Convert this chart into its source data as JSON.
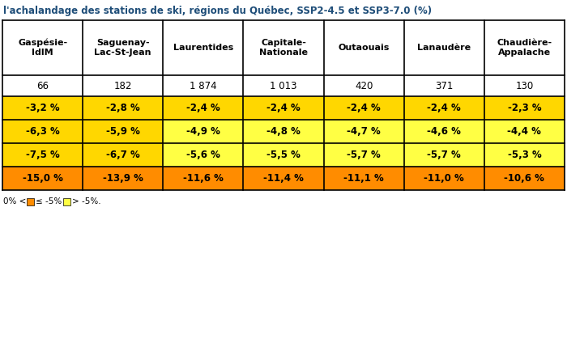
{
  "title": "l'achalandage des stations de ski, régions du Québec, SSP2-4.5 et SSP3-7.0 (%)",
  "columns": [
    "Gaspésie-\nIdlM",
    "Saguenay-\nLac-St-Jean",
    "Laurentides",
    "Capitale-\nNationale",
    "Outaouais",
    "Lanaudère",
    "Chaudière-\nAppalache"
  ],
  "counts": [
    "66",
    "182",
    "1 874",
    "1 013",
    "420",
    "371",
    "130"
  ],
  "rows": [
    [
      "-3,2 %",
      "-2,8 %",
      "-2,4 %",
      "-2,4 %",
      "-2,4 %",
      "-2,4 %",
      "-2,3 %"
    ],
    [
      "-6,3 %",
      "-5,9 %",
      "-4,9 %",
      "-4,8 %",
      "-4,7 %",
      "-4,6 %",
      "-4,4 %"
    ],
    [
      "-7,5 %",
      "-6,7 %",
      "-5,6 %",
      "-5,5 %",
      "-5,7 %",
      "-5,7 %",
      "-5,3 %"
    ],
    [
      "-15,0 %",
      "-13,9 %",
      "-11,6 %",
      "-11,4 %",
      "-11,1 %",
      "-11,0 %",
      "-10,6 %"
    ]
  ],
  "row_colors": [
    [
      "#FFD700",
      "#FFD700",
      "#FFD700",
      "#FFD700",
      "#FFD700",
      "#FFD700",
      "#FFD700"
    ],
    [
      "#FFD700",
      "#FFD700",
      "#FFFF44",
      "#FFFF44",
      "#FFFF44",
      "#FFFF44",
      "#FFFF44"
    ],
    [
      "#FFD700",
      "#FFD700",
      "#FFFF44",
      "#FFFF44",
      "#FFFF44",
      "#FFFF44",
      "#FFFF44"
    ],
    [
      "#FF8C00",
      "#FF8C00",
      "#FF8C00",
      "#FF8C00",
      "#FF8C00",
      "#FF8C00",
      "#FF8C00"
    ]
  ],
  "title_color": "#1F4E79",
  "bg_color": "#FFFFFF",
  "text_color": "#000000",
  "header_bg": "#FFFFFF",
  "border_color": "#000000",
  "orange_color": "#FF8C00",
  "yellow_color": "#FFFF44"
}
